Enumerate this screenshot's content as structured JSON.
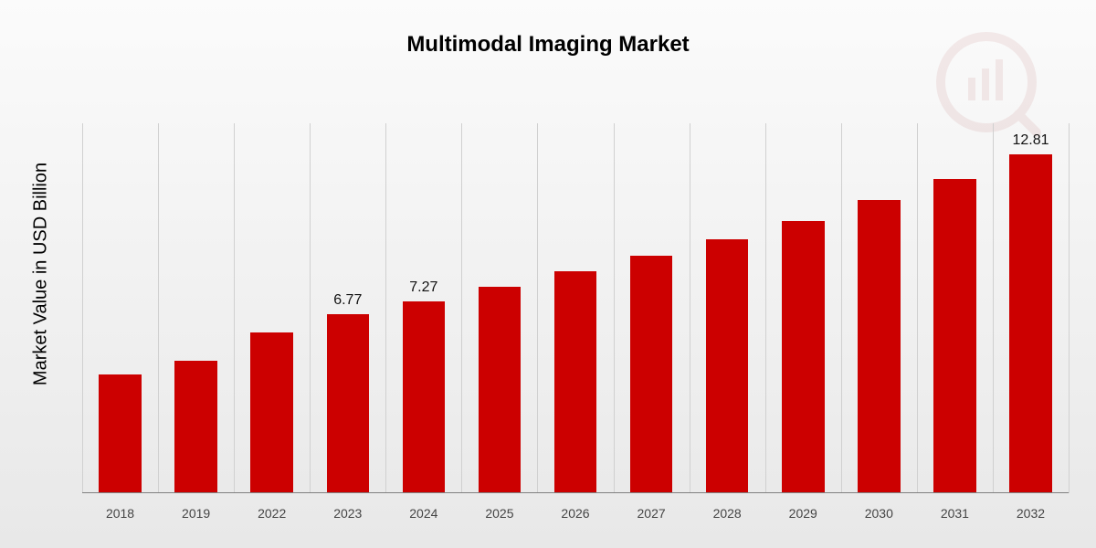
{
  "chart": {
    "type": "bar",
    "title": "Multimodal Imaging Market",
    "title_fontsize": 24,
    "title_color": "#000000",
    "ylabel": "Market Value in USD Billion",
    "ylabel_fontsize": 20,
    "ylabel_color": "#000000",
    "background_gradient_top": "#fbfbfb",
    "background_gradient_bottom": "#e8e8e8",
    "bar_color": "#cc0000",
    "grid_separator_color": "#d0d0d0",
    "baseline_color": "#808080",
    "value_label_color": "#111111",
    "value_label_fontsize": 16,
    "xlabel_color": "#444444",
    "xlabel_fontsize": 14,
    "ylim_max_value": 14.0,
    "bar_width_pct": 56,
    "categories": [
      "2018",
      "2019",
      "2022",
      "2023",
      "2024",
      "2025",
      "2026",
      "2027",
      "2028",
      "2029",
      "2030",
      "2031",
      "2032"
    ],
    "values": [
      4.5,
      5.0,
      6.1,
      6.77,
      7.27,
      7.8,
      8.4,
      9.0,
      9.6,
      10.3,
      11.1,
      11.9,
      12.81
    ],
    "visible_value_labels": {
      "3": "6.77",
      "4": "7.27",
      "12": "12.81"
    },
    "watermark_color": "#a02020"
  }
}
